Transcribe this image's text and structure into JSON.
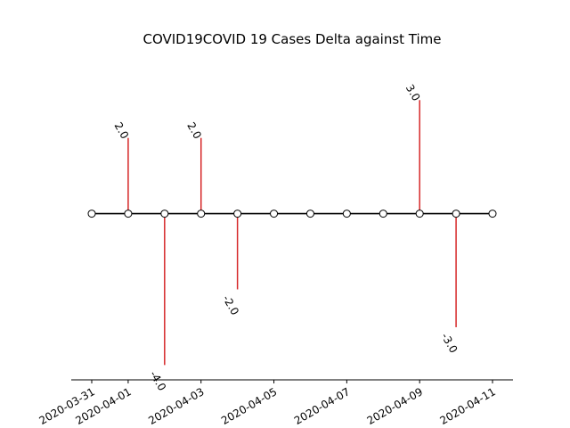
{
  "chart_data": {
    "type": "stem",
    "title": "COVID19COVID 19 Cases Delta against Time",
    "xlabel": "",
    "ylabel": "",
    "x": [
      "2020-03-31",
      "2020-04-01",
      "2020-04-02",
      "2020-04-03",
      "2020-04-04",
      "2020-04-05",
      "2020-04-06",
      "2020-04-07",
      "2020-04-08",
      "2020-04-09",
      "2020-04-10",
      "2020-04-11"
    ],
    "values": [
      0,
      2.0,
      -4.0,
      2.0,
      -2.0,
      0,
      0,
      0,
      0,
      3.0,
      -3.0,
      0
    ],
    "point_labels": [
      "",
      "2.0",
      "-4.0",
      "2.0",
      "-2.0",
      "",
      "",
      "",
      "",
      "3.0",
      "-3.0",
      ""
    ],
    "x_ticks": [
      "2020-03-31",
      "2020-04-01",
      "2020-04-03",
      "2020-04-05",
      "2020-04-07",
      "2020-04-09",
      "2020-04-11"
    ],
    "ylim": [
      -4.4,
      4.4
    ],
    "grid": false,
    "colors": {
      "stem": "#d62728",
      "baseline": "#000000",
      "marker_face": "#ffffff",
      "marker_edge": "#000000"
    }
  }
}
